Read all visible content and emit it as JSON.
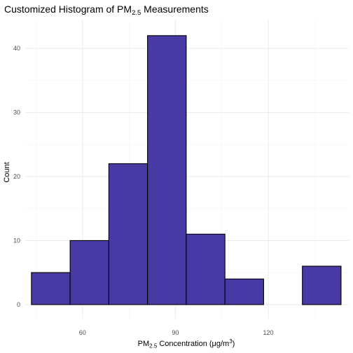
{
  "chart_data": {
    "type": "bar",
    "title": {
      "prefix": "Customized Histogram of PM",
      "sub": "2.5",
      "suffix": " Measurements"
    },
    "xlabel": {
      "prefix": "PM",
      "sub": "2.5",
      "mid": " Concentration (μg/m",
      "sup": "3",
      "suffix": ")"
    },
    "ylabel": "Count",
    "bins": [
      {
        "start": 43.5,
        "end": 56,
        "count": 5
      },
      {
        "start": 56,
        "end": 68.5,
        "count": 10
      },
      {
        "start": 68.5,
        "end": 81,
        "count": 22
      },
      {
        "start": 81,
        "end": 93.5,
        "count": 42
      },
      {
        "start": 93.5,
        "end": 106,
        "count": 11
      },
      {
        "start": 106,
        "end": 118.5,
        "count": 4
      },
      {
        "start": 118.5,
        "end": 131,
        "count": 0
      },
      {
        "start": 131,
        "end": 143.5,
        "count": 6
      }
    ],
    "xlim": [
      41.5,
      146
    ],
    "ylim": [
      -2.2,
      44.5
    ],
    "x_ticks": [
      60,
      90,
      120
    ],
    "y_ticks": [
      0,
      10,
      20,
      30,
      40
    ],
    "grid": true,
    "bar_fill": "#483aa4",
    "bar_outline": "#000000"
  }
}
